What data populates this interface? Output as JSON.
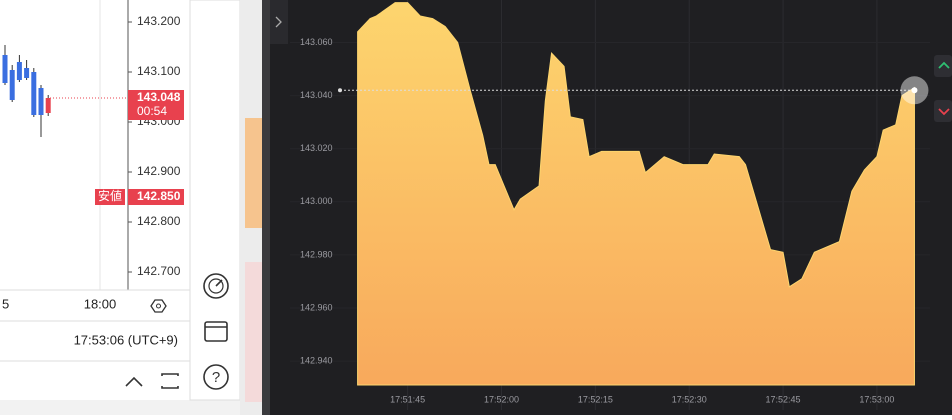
{
  "chart_data": [
    {
      "type": "area",
      "x": [
        "17:51:37",
        "17:51:39",
        "17:51:40",
        "17:51:43",
        "17:51:45",
        "17:51:47",
        "17:51:49",
        "17:51:51",
        "17:51:53",
        "17:51:55",
        "17:51:57",
        "17:51:58",
        "17:51:59",
        "17:52:02",
        "17:52:03",
        "17:52:06",
        "17:52:07",
        "17:52:08",
        "17:52:10",
        "17:52:11",
        "17:52:13",
        "17:52:14",
        "17:52:16",
        "17:52:22",
        "17:52:23",
        "17:52:26",
        "17:52:29",
        "17:52:33",
        "17:52:34",
        "17:52:38",
        "17:52:39",
        "17:52:43",
        "17:52:45",
        "17:52:46",
        "17:52:48",
        "17:52:50",
        "17:52:54",
        "17:52:56",
        "17:52:58",
        "17:53:00",
        "17:53:01",
        "17:53:03",
        "17:53:04",
        "17:53:06"
      ],
      "values": [
        143.064,
        143.069,
        143.07,
        143.075,
        143.075,
        143.07,
        143.069,
        143.066,
        143.06,
        143.042,
        143.025,
        143.014,
        143.014,
        142.997,
        143.001,
        143.006,
        143.038,
        143.056,
        143.051,
        143.032,
        143.031,
        143.017,
        143.019,
        143.019,
        143.011,
        143.017,
        143.014,
        143.014,
        143.018,
        143.017,
        143.014,
        142.982,
        142.981,
        142.968,
        142.971,
        142.981,
        142.985,
        143.004,
        143.012,
        143.017,
        143.027,
        143.029,
        143.04,
        143.043
      ],
      "color": "#fdd56e",
      "xlim": [
        "17:51:23",
        "17:53:12"
      ],
      "xticks": [
        "17:51:45",
        "17:52:00",
        "17:52:15",
        "17:52:30",
        "17:52:45",
        "17:53:00"
      ],
      "ylim": [
        142.931,
        143.076
      ],
      "yticks": [
        {
          "value": 142.94,
          "label": "142.940"
        },
        {
          "value": 142.96,
          "label": "142.960"
        },
        {
          "value": 142.98,
          "label": "142.980"
        },
        {
          "value": 143.0,
          "label": "143.000"
        },
        {
          "value": 143.02,
          "label": "143.020"
        },
        {
          "value": 143.04,
          "label": "143.040"
        },
        {
          "value": 143.06,
          "label": "143.060"
        }
      ],
      "reference_line": 143.042
    },
    {
      "type": "candlestick",
      "categories": [
        null,
        null,
        null,
        null,
        null,
        null,
        null
      ],
      "open": [
        143.134,
        143.104,
        143.12,
        143.108,
        143.1,
        143.068,
        143.018
      ],
      "high": [
        143.154,
        143.114,
        143.134,
        143.124,
        143.108,
        143.074,
        143.054
      ],
      "low": [
        143.074,
        143.04,
        143.08,
        143.084,
        143.01,
        142.97,
        143.012
      ],
      "close": [
        143.078,
        143.044,
        143.084,
        143.088,
        143.014,
        143.014,
        143.048
      ],
      "up_color": "#e8414e",
      "down_color": "#3a6ee0",
      "ylim": [
        142.664,
        143.244
      ],
      "yticks": [
        {
          "value": 142.7,
          "label": "142.700"
        },
        {
          "value": 142.8,
          "label": "142.800"
        },
        {
          "value": 142.9,
          "label": "142.900"
        },
        {
          "value": 143.0,
          "label": "143.000"
        },
        {
          "value": 143.1,
          "label": "143.100"
        },
        {
          "value": 143.2,
          "label": "143.200"
        }
      ],
      "x_labels": [
        "5",
        "18:00"
      ],
      "current": {
        "value": 143.048,
        "label": "143.048",
        "countdown": "00:54"
      },
      "low_line": {
        "name": "安値",
        "value": 142.85,
        "label": "142.850"
      }
    }
  ],
  "ui": {
    "clock": "17:53:06 (UTC+9)"
  }
}
